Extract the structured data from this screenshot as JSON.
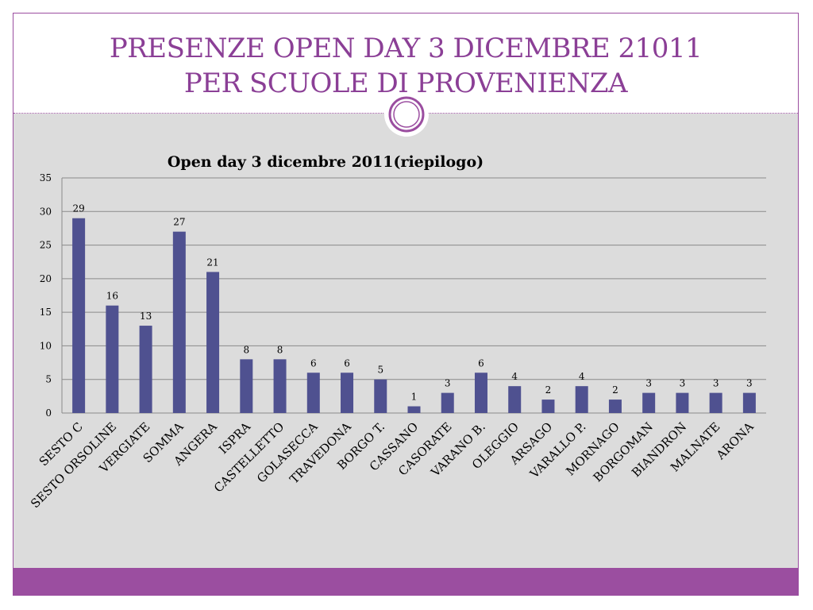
{
  "slide": {
    "title_line1": "PRESENZE OPEN DAY 3 DICEMBRE 21011",
    "title_line2": "PER SCUOLE DI PROVENIENZA"
  },
  "colors": {
    "accent": "#9b4ea0",
    "title": "#8b3f96",
    "bar": "#4f5190",
    "panel": "#dcdcdc"
  },
  "chart_data": {
    "type": "bar",
    "title": "Open day  3 dicembre 2011(riepilogo)",
    "categories": [
      "SESTO C",
      "SESTO ORSOLINE",
      "VERGIATE",
      "SOMMA",
      "ANGERA",
      "ISPRA",
      "CASTELLETTO",
      "GOLASECCA",
      "TRAVEDONA",
      "BORGO T.",
      "CASSANO",
      "CASORATE",
      "VARANO B.",
      "OLEGGIO",
      "ARSAGO",
      "VARALLO P.",
      "MORNAGO",
      "BORGOMAN",
      "BIANDRON",
      "MALNATE",
      "ARONA"
    ],
    "values": [
      29,
      16,
      13,
      27,
      21,
      8,
      8,
      6,
      6,
      5,
      1,
      3,
      6,
      4,
      2,
      4,
      2,
      3,
      3,
      3,
      3
    ],
    "ylim": [
      0,
      35
    ],
    "yticks": [
      0,
      5,
      10,
      15,
      20,
      25,
      30,
      35
    ],
    "xlabel": "",
    "ylabel": "",
    "grid": true,
    "legend": "none",
    "data_labels": true
  }
}
